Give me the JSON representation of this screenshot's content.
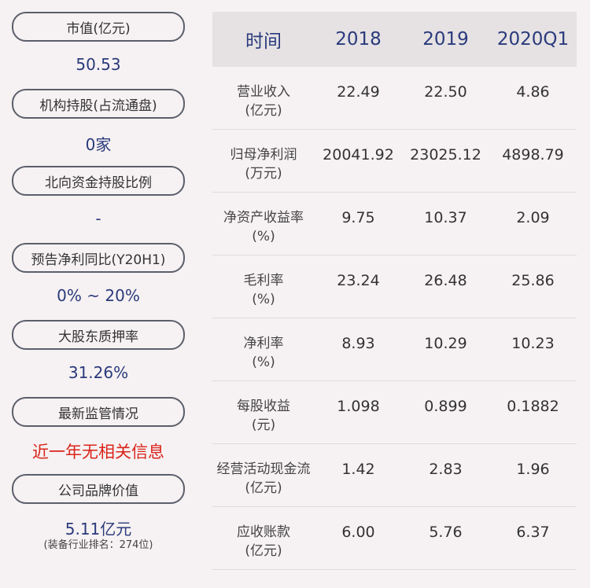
{
  "left": {
    "items": [
      {
        "label": "市值(亿元)",
        "value": "50.53"
      },
      {
        "label": "机构持股(占流通盘)",
        "value": "0家"
      },
      {
        "label": "北向资金持股比例",
        "value": "-"
      },
      {
        "label": "预告净利同比(Y20H1)",
        "value": "0% ~ 20%"
      },
      {
        "label": "大股东质押率",
        "value": "31.26%"
      },
      {
        "label": "最新监管情况",
        "value": "近一年无相关信息"
      },
      {
        "label": "公司品牌价值",
        "value": "5.11亿元",
        "note": "(装备行业排名：274位)"
      }
    ]
  },
  "table": {
    "headers": [
      "时间",
      "2018",
      "2019",
      "2020Q1"
    ],
    "rows": [
      {
        "name": "营业收入",
        "unit": "(亿元)",
        "v": [
          "22.49",
          "22.50",
          "4.86"
        ]
      },
      {
        "name": "归母净利润",
        "unit": "(万元)",
        "v": [
          "20041.92",
          "23025.12",
          "4898.79"
        ]
      },
      {
        "name": "净资产收益率",
        "unit": "(%)",
        "v": [
          "9.75",
          "10.37",
          "2.09"
        ]
      },
      {
        "name": "毛利率",
        "unit": "(%)",
        "v": [
          "23.24",
          "26.48",
          "25.86"
        ]
      },
      {
        "name": "净利率",
        "unit": "(%)",
        "v": [
          "8.93",
          "10.29",
          "10.23"
        ]
      },
      {
        "name": "每股收益",
        "unit": "(元)",
        "v": [
          "1.098",
          "0.899",
          "0.1882"
        ]
      },
      {
        "name": "经营活动现金流",
        "unit": "(亿元)",
        "v": [
          "1.42",
          "2.83",
          "1.96"
        ]
      },
      {
        "name": "应收账款",
        "unit": "(亿元)",
        "v": [
          "6.00",
          "5.76",
          "6.37"
        ]
      }
    ]
  },
  "colors": {
    "value": "#2a3a7c",
    "alert": "#d9241b",
    "header_bg": "#e6e2e3",
    "page_bg": "#f6f1f2"
  }
}
